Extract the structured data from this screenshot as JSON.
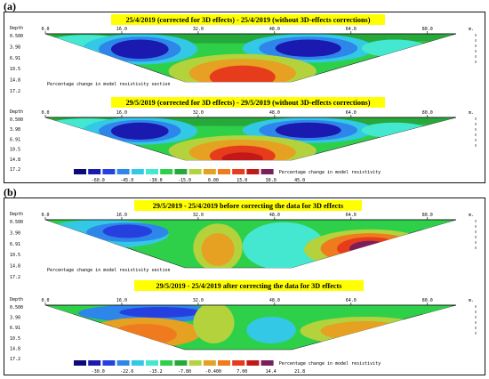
{
  "panels": [
    {
      "letter": "(a)",
      "sections": [
        {
          "title": "25/4/2019 (corrected for 3D effects) - 25/4/2019 (without 3D-effects corrections)",
          "caption": "Percentage change in model resistivity section"
        },
        {
          "title": "29/5/2019 (corrected for 3D effects) - 29/5/2019 (without 3D-effects corrections)",
          "caption": ""
        }
      ],
      "legend": {
        "colors": [
          "#0a0a7a",
          "#1a1ab0",
          "#2640e0",
          "#2f86ea",
          "#33c8e6",
          "#44e8d0",
          "#2ed04a",
          "#26a83a",
          "#b4d23c",
          "#e6a022",
          "#f07a1e",
          "#e63c1c",
          "#c21818",
          "#7a1f5c"
        ],
        "labels": [
          "-60.0",
          "-45.0",
          "-30.0",
          "-15.0",
          "0.00",
          "15.0",
          "30.0",
          "45.0"
        ],
        "caption": "Percentage change in model resistivity"
      }
    },
    {
      "letter": "(b)",
      "sections": [
        {
          "title": "29/5/2019 - 25/4/2019 before correcting the data for 3D effects",
          "caption": "Percentage change in model resistivity section"
        },
        {
          "title": "29/5/2019 - 25/4/2019 after correcting the data for 3D effects",
          "caption": ""
        }
      ],
      "legend": {
        "colors": [
          "#0a0a7a",
          "#1a1ab0",
          "#2640e0",
          "#2f86ea",
          "#33c8e6",
          "#44e8d0",
          "#2ed04a",
          "#26a83a",
          "#b4d23c",
          "#e6a022",
          "#f07a1e",
          "#e63c1c",
          "#c21818",
          "#7a1f5c"
        ],
        "labels": [
          "-30.0",
          "-22.6",
          "-15.2",
          "-7.80",
          "-0.400",
          "7.00",
          "14.4",
          "21.8"
        ],
        "caption": "Percentage change in model resistivity"
      }
    }
  ],
  "chart_data": [
    {
      "type": "heatmap",
      "title": "25/4/2019 (corrected for 3D effects) - 25/4/2019 (without 3D-effects corrections)",
      "x_ticks": [
        "0.0",
        "16.0",
        "32.0",
        "48.0",
        "64.0",
        "80.0"
      ],
      "x_unit": "m.",
      "ylabel": "Depth",
      "y_ticks": [
        "0.500",
        "3.98",
        "6.91",
        "10.5",
        "14.8",
        "17.2"
      ],
      "caption": "Percentage change in model resistivity section"
    },
    {
      "type": "heatmap",
      "title": "29/5/2019 (corrected for 3D effects) - 29/5/2019 (without 3D-effects corrections)",
      "x_ticks": [
        "0.0",
        "16.0",
        "32.0",
        "48.0",
        "64.0",
        "80.0"
      ],
      "x_unit": "m.",
      "ylabel": "Depth",
      "y_ticks": [
        "0.500",
        "3.98",
        "6.91",
        "10.5",
        "14.8",
        "17.2"
      ]
    },
    {
      "type": "heatmap",
      "title": "29/5/2019 - 25/4/2019 before correcting the data for 3D effects",
      "x_ticks": [
        "0.0",
        "16.0",
        "32.0",
        "48.0",
        "64.0",
        "80.0"
      ],
      "x_unit": "m.",
      "ylabel": "Depth",
      "y_ticks": [
        "0.500",
        "3.90",
        "6.91",
        "10.5",
        "14.8",
        "17.2"
      ],
      "caption": "Percentage change in model resistivity section"
    },
    {
      "type": "heatmap",
      "title": "29/5/2019 - 25/4/2019 after correcting the data for 3D effects",
      "x_ticks": [
        "0.0",
        "16.0",
        "32.0",
        "48.0",
        "64.0",
        "80.0"
      ],
      "x_unit": "m.",
      "ylabel": "Depth",
      "y_ticks": [
        "0.500",
        "3.90",
        "6.91",
        "10.5",
        "14.8",
        "17.2"
      ]
    }
  ]
}
